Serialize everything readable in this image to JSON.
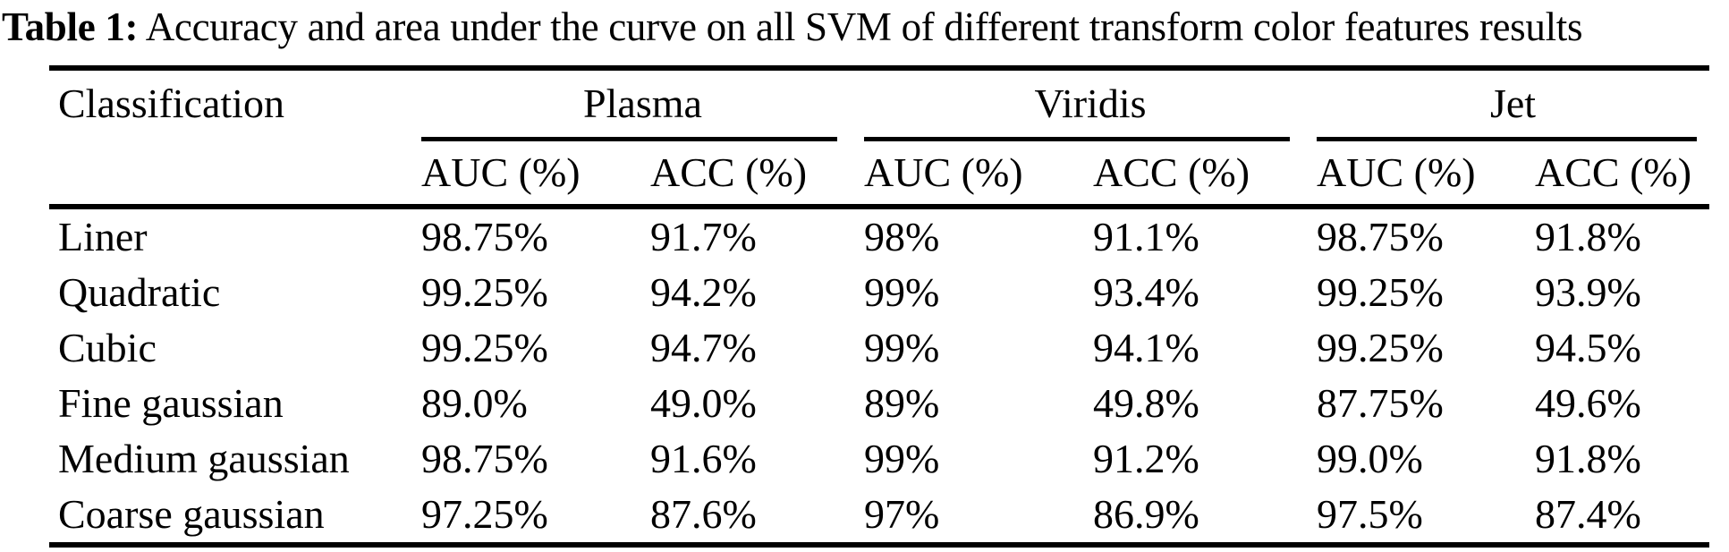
{
  "caption": {
    "label": "Table 1:",
    "text": " Accuracy and area under the curve on all SVM of different transform color features results"
  },
  "table": {
    "row_header": "Classification",
    "groups": [
      {
        "name": "Plasma"
      },
      {
        "name": "Viridis"
      },
      {
        "name": "Jet"
      }
    ],
    "sub_headers": [
      "AUC (%)",
      "ACC (%)"
    ],
    "rows": [
      {
        "label": "Liner",
        "values": [
          "98.75%",
          "91.7%",
          "98%",
          "91.1%",
          "98.75%",
          "91.8%"
        ]
      },
      {
        "label": "Quadratic",
        "values": [
          "99.25%",
          "94.2%",
          "99%",
          "93.4%",
          "99.25%",
          "93.9%"
        ]
      },
      {
        "label": "Cubic",
        "values": [
          "99.25%",
          "94.7%",
          "99%",
          "94.1%",
          "99.25%",
          "94.5%"
        ]
      },
      {
        "label": "Fine gaussian",
        "values": [
          "89.0%",
          "49.0%",
          "89%",
          "49.8%",
          "87.75%",
          "49.6%"
        ]
      },
      {
        "label": "Medium gaussian",
        "values": [
          "98.75%",
          "91.6%",
          "99%",
          "91.2%",
          "99.0%",
          "91.8%"
        ]
      },
      {
        "label": "Coarse gaussian",
        "values": [
          "97.25%",
          "87.6%",
          "97%",
          "86.9%",
          "97.5%",
          "87.4%"
        ]
      }
    ]
  },
  "colors": {
    "text": "#000000",
    "background": "#ffffff",
    "rule": "#000000"
  }
}
